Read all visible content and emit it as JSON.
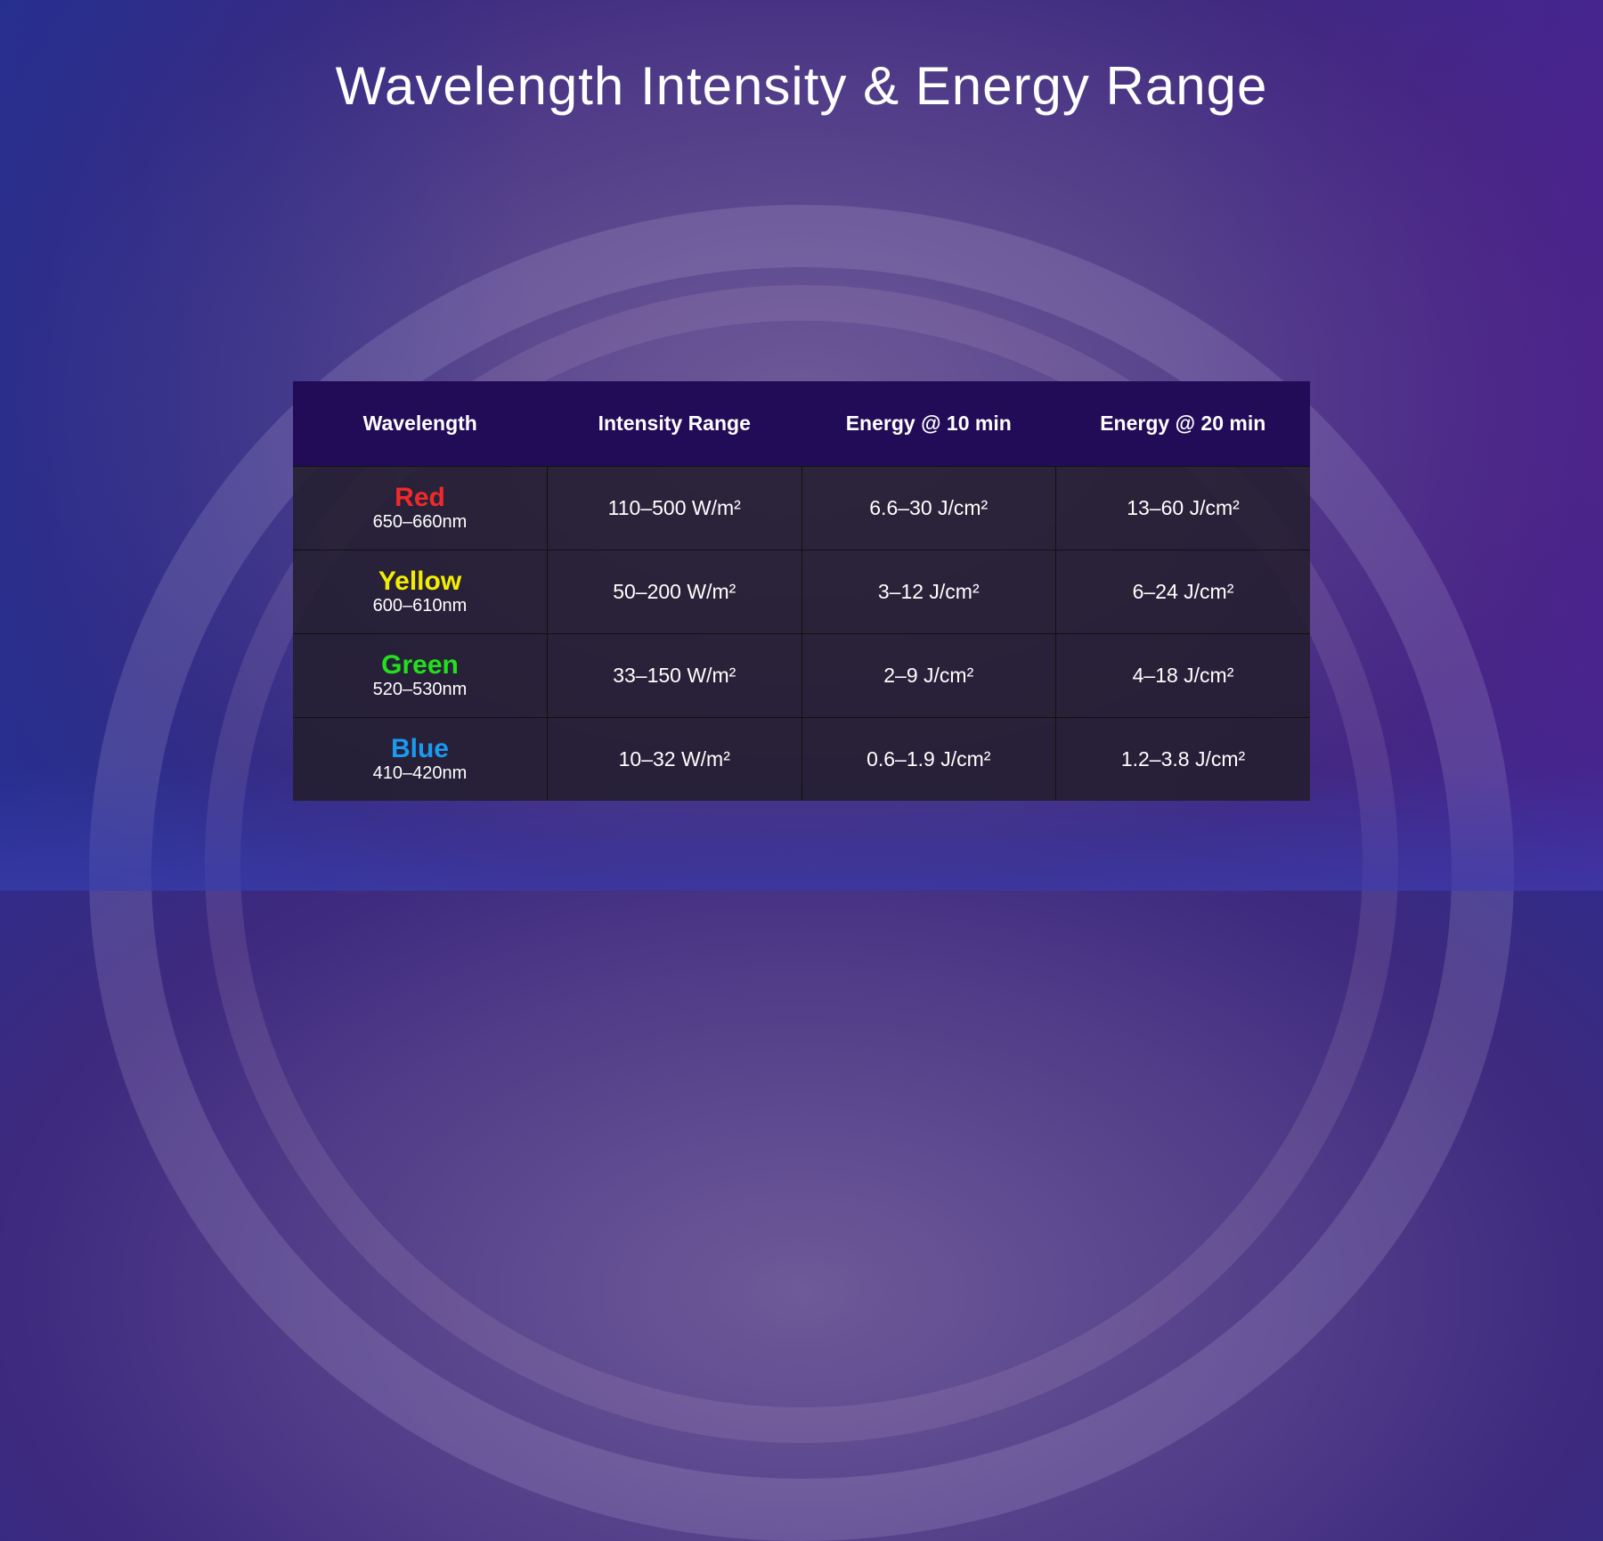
{
  "title": "Wavelength Intensity & Energy Range",
  "headers": [
    "Wavelength",
    "Intensity Range",
    "Energy @ 10 min",
    "Energy @ 20 min"
  ],
  "rows": [
    {
      "name": "Red",
      "color": "#f02a2a",
      "range": "650–660nm",
      "intensity": "110–500 W/m²",
      "e10": "6.6–30 J/cm²",
      "e20": "13–60 J/cm²"
    },
    {
      "name": "Yellow",
      "color": "#f2ee00",
      "range": "600–610nm",
      "intensity": "50–200 W/m²",
      "e10": "3–12 J/cm²",
      "e20": "6–24 J/cm²"
    },
    {
      "name": "Green",
      "color": "#22e01c",
      "range": "520–530nm",
      "intensity": "33–150 W/m²",
      "e10": "2–9 J/cm²",
      "e20": "4–18 J/cm²"
    },
    {
      "name": "Blue",
      "color": "#1a9af0",
      "range": "410–420nm",
      "intensity": "10–32 W/m²",
      "e10": "0.6–1.9 J/cm²",
      "e20": "1.2–3.8 J/cm²"
    }
  ]
}
